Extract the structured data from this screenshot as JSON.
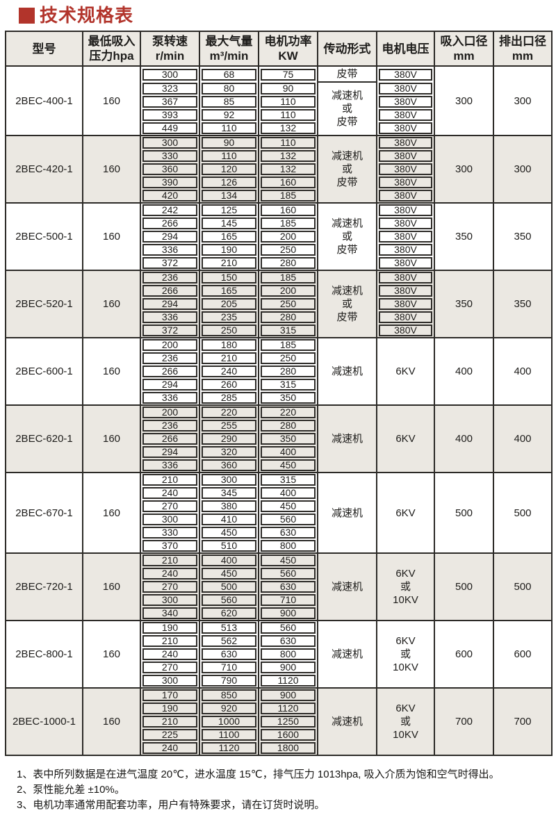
{
  "title": "技术规格表",
  "colors": {
    "title_red": "#b2342b",
    "header_bg": "#ece9e3",
    "stripe_bg": "#ebe8e2",
    "border": "#2c2a27"
  },
  "table": {
    "headers": [
      {
        "lines": [
          "型号"
        ]
      },
      {
        "lines": [
          "最低吸入",
          "压力hpa"
        ]
      },
      {
        "lines": [
          "泵转速",
          "r/min"
        ]
      },
      {
        "lines": [
          "最大气量",
          "m³/min"
        ]
      },
      {
        "lines": [
          "电机功率",
          "KW"
        ]
      },
      {
        "lines": [
          "传动形式"
        ]
      },
      {
        "lines": [
          "电机电压"
        ]
      },
      {
        "lines": [
          "吸入口径",
          "mm"
        ]
      },
      {
        "lines": [
          "排出口径",
          "mm"
        ]
      }
    ],
    "blocks": [
      {
        "model": "2BEC-400-1",
        "min_pressure": "160",
        "rows": [
          [
            "300",
            "68",
            "75"
          ],
          [
            "323",
            "80",
            "90"
          ],
          [
            "367",
            "85",
            "110"
          ],
          [
            "393",
            "92",
            "110"
          ],
          [
            "449",
            "110",
            "132"
          ]
        ],
        "transmission": [
          {
            "lines": [
              "皮带"
            ],
            "span": 1
          },
          {
            "lines": [
              "减速机",
              "或",
              "皮带"
            ],
            "span": 4
          }
        ],
        "voltage": {
          "per_row": [
            "380V",
            "380V",
            "380V",
            "380V",
            "380V"
          ]
        },
        "suction": "300",
        "discharge": "300"
      },
      {
        "model": "2BEC-420-1",
        "min_pressure": "160",
        "rows": [
          [
            "300",
            "90",
            "110"
          ],
          [
            "330",
            "110",
            "132"
          ],
          [
            "360",
            "120",
            "132"
          ],
          [
            "390",
            "126",
            "160"
          ],
          [
            "420",
            "134",
            "185"
          ]
        ],
        "transmission": [
          {
            "lines": [
              "减速机",
              "或",
              "皮带"
            ],
            "span": 5
          }
        ],
        "voltage": {
          "per_row": [
            "380V",
            "380V",
            "380V",
            "380V",
            "380V"
          ]
        },
        "suction": "300",
        "discharge": "300"
      },
      {
        "model": "2BEC-500-1",
        "min_pressure": "160",
        "rows": [
          [
            "242",
            "125",
            "160"
          ],
          [
            "266",
            "145",
            "185"
          ],
          [
            "294",
            "165",
            "200"
          ],
          [
            "336",
            "190",
            "250"
          ],
          [
            "372",
            "210",
            "280"
          ]
        ],
        "transmission": [
          {
            "lines": [
              "减速机",
              "或",
              "皮带"
            ],
            "span": 5
          }
        ],
        "voltage": {
          "per_row": [
            "380V",
            "380V",
            "380V",
            "380V",
            "380V"
          ]
        },
        "suction": "350",
        "discharge": "350"
      },
      {
        "model": "2BEC-520-1",
        "min_pressure": "160",
        "rows": [
          [
            "236",
            "150",
            "185"
          ],
          [
            "266",
            "165",
            "200"
          ],
          [
            "294",
            "205",
            "250"
          ],
          [
            "336",
            "235",
            "280"
          ],
          [
            "372",
            "250",
            "315"
          ]
        ],
        "transmission": [
          {
            "lines": [
              "减速机",
              "或",
              "皮带"
            ],
            "span": 5
          }
        ],
        "voltage": {
          "per_row": [
            "380V",
            "380V",
            "380V",
            "380V",
            "380V"
          ]
        },
        "suction": "350",
        "discharge": "350"
      },
      {
        "model": "2BEC-600-1",
        "min_pressure": "160",
        "rows": [
          [
            "200",
            "180",
            "185"
          ],
          [
            "236",
            "210",
            "250"
          ],
          [
            "266",
            "240",
            "280"
          ],
          [
            "294",
            "260",
            "315"
          ],
          [
            "336",
            "285",
            "350"
          ]
        ],
        "transmission": [
          {
            "lines": [
              "减速机"
            ],
            "span": 5
          }
        ],
        "voltage": {
          "merged": [
            "6KV"
          ]
        },
        "suction": "400",
        "discharge": "400"
      },
      {
        "model": "2BEC-620-1",
        "min_pressure": "160",
        "rows": [
          [
            "200",
            "220",
            "220"
          ],
          [
            "236",
            "255",
            "280"
          ],
          [
            "266",
            "290",
            "350"
          ],
          [
            "294",
            "320",
            "400"
          ],
          [
            "336",
            "360",
            "450"
          ]
        ],
        "transmission": [
          {
            "lines": [
              "减速机"
            ],
            "span": 5
          }
        ],
        "voltage": {
          "merged": [
            "6KV"
          ]
        },
        "suction": "400",
        "discharge": "400"
      },
      {
        "model": "2BEC-670-1",
        "min_pressure": "160",
        "rows": [
          [
            "210",
            "300",
            "315"
          ],
          [
            "240",
            "345",
            "400"
          ],
          [
            "270",
            "380",
            "450"
          ],
          [
            "300",
            "410",
            "560"
          ],
          [
            "330",
            "450",
            "630"
          ],
          [
            "370",
            "510",
            "800"
          ]
        ],
        "transmission": [
          {
            "lines": [
              "减速机"
            ],
            "span": 6
          }
        ],
        "voltage": {
          "merged": [
            "6KV"
          ]
        },
        "suction": "500",
        "discharge": "500"
      },
      {
        "model": "2BEC-720-1",
        "min_pressure": "160",
        "rows": [
          [
            "210",
            "400",
            "450"
          ],
          [
            "240",
            "450",
            "560"
          ],
          [
            "270",
            "500",
            "630"
          ],
          [
            "300",
            "560",
            "710"
          ],
          [
            "340",
            "620",
            "900"
          ]
        ],
        "transmission": [
          {
            "lines": [
              "减速机"
            ],
            "span": 5
          }
        ],
        "voltage": {
          "merged": [
            "6KV",
            "或",
            "10KV"
          ]
        },
        "suction": "500",
        "discharge": "500"
      },
      {
        "model": "2BEC-800-1",
        "min_pressure": "160",
        "rows": [
          [
            "190",
            "513",
            "560"
          ],
          [
            "210",
            "562",
            "630"
          ],
          [
            "240",
            "630",
            "800"
          ],
          [
            "270",
            "710",
            "900"
          ],
          [
            "300",
            "790",
            "1120"
          ]
        ],
        "transmission": [
          {
            "lines": [
              "减速机"
            ],
            "span": 5
          }
        ],
        "voltage": {
          "merged": [
            "6KV",
            "或",
            "10KV"
          ]
        },
        "suction": "600",
        "discharge": "600"
      },
      {
        "model": "2BEC-1000-1",
        "min_pressure": "160",
        "rows": [
          [
            "170",
            "850",
            "900"
          ],
          [
            "190",
            "920",
            "1120"
          ],
          [
            "210",
            "1000",
            "1250"
          ],
          [
            "225",
            "1100",
            "1600"
          ],
          [
            "240",
            "1120",
            "1800"
          ]
        ],
        "transmission": [
          {
            "lines": [
              "减速机"
            ],
            "span": 5
          }
        ],
        "voltage": {
          "merged": [
            "6KV",
            "或",
            "10KV"
          ]
        },
        "suction": "700",
        "discharge": "700"
      }
    ]
  },
  "footnotes": [
    "1、表中所列数据是在进气温度 20℃，进水温度 15℃，排气压力 1013hpa, 吸入介质为饱和空气时得出。",
    "2、泵性能允差 ±10%。",
    "3、电机功率通常用配套功率，用户有特殊要求，请在订货时说明。"
  ]
}
